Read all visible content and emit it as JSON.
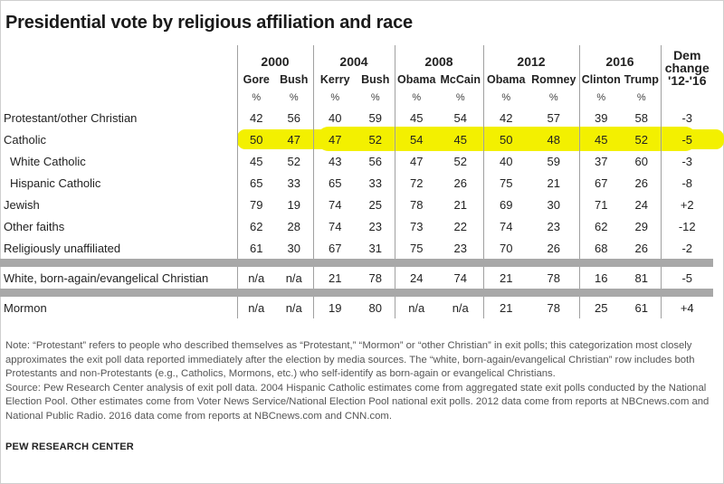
{
  "title": "Presidential vote by religious affiliation and race",
  "years": [
    "2000",
    "2004",
    "2008",
    "2012",
    "2016"
  ],
  "candidates": [
    "Gore",
    "Bush",
    "Kerry",
    "Bush",
    "Obama",
    "McCain",
    "Obama",
    "Romney",
    "Clinton",
    "Trump"
  ],
  "dem_change_header": [
    "Dem",
    "change",
    "'12-'16"
  ],
  "pct_symbol": "%",
  "chart_data": {
    "type": "table",
    "title": "Presidential vote by religious affiliation and race",
    "columns": [
      "2000 Gore",
      "2000 Bush",
      "2004 Kerry",
      "2004 Bush",
      "2008 Obama",
      "2008 McCain",
      "2012 Obama",
      "2012 Romney",
      "2016 Clinton",
      "2016 Trump",
      "Dem change '12-'16"
    ],
    "rows": [
      {
        "label": "Protestant/other Christian",
        "values": [
          "42",
          "56",
          "40",
          "59",
          "45",
          "54",
          "42",
          "57",
          "39",
          "58",
          "-3"
        ]
      },
      {
        "label": "Catholic",
        "values": [
          "50",
          "47",
          "47",
          "52",
          "54",
          "45",
          "50",
          "48",
          "45",
          "52",
          "-5"
        ],
        "highlight": true
      },
      {
        "label": "White Catholic",
        "values": [
          "45",
          "52",
          "43",
          "56",
          "47",
          "52",
          "40",
          "59",
          "37",
          "60",
          "-3"
        ],
        "indent": true
      },
      {
        "label": "Hispanic Catholic",
        "values": [
          "65",
          "33",
          "65",
          "33",
          "72",
          "26",
          "75",
          "21",
          "67",
          "26",
          "-8"
        ],
        "indent": true
      },
      {
        "label": "Jewish",
        "values": [
          "79",
          "19",
          "74",
          "25",
          "78",
          "21",
          "69",
          "30",
          "71",
          "24",
          "+2"
        ]
      },
      {
        "label": "Other faiths",
        "values": [
          "62",
          "28",
          "74",
          "23",
          "73",
          "22",
          "74",
          "23",
          "62",
          "29",
          "-12"
        ]
      },
      {
        "label": "Religiously unaffiliated",
        "values": [
          "61",
          "30",
          "67",
          "31",
          "75",
          "23",
          "70",
          "26",
          "68",
          "26",
          "-2"
        ]
      },
      {
        "label": "White, born-again/evangelical Christian",
        "values": [
          "n/a",
          "n/a",
          "21",
          "78",
          "24",
          "74",
          "21",
          "78",
          "16",
          "81",
          "-5"
        ],
        "separator_before": true
      },
      {
        "label": "Mormon",
        "values": [
          "n/a",
          "n/a",
          "19",
          "80",
          "n/a",
          "n/a",
          "21",
          "78",
          "25",
          "61",
          "+4"
        ],
        "separator_before": true
      }
    ],
    "highlight_color": "#f3f000"
  },
  "notes": [
    "Note: “Protestant” refers to people who described themselves as “Protestant,” “Mormon” or “other Christian” in exit polls; this categorization most closely approximates the exit poll data reported immediately after the election by media sources. The “white, born-again/evangelical Christian” row includes both Protestants and non-Protestants (e.g., Catholics, Mormons, etc.) who self-identify as born-again or evangelical Christians.",
    "Source: Pew Research Center analysis of exit poll data. 2004 Hispanic Catholic estimates come from aggregated state exit polls conducted by the National Election Pool. Other estimates come from Voter News Service/National Election Pool national exit polls. 2012 data come from reports at NBCnews.com and National Public Radio. 2016 data come from reports at NBCnews.com and CNN.com."
  ],
  "credit": "PEW RESEARCH CENTER"
}
